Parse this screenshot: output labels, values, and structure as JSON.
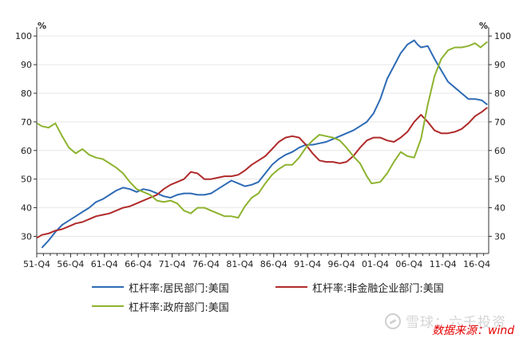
{
  "chart_data": {
    "type": "line",
    "y_unit_left": "%",
    "y_unit_right": "%",
    "ylim": [
      24,
      102
    ],
    "yticks": [
      30,
      40,
      50,
      60,
      70,
      80,
      90,
      100
    ],
    "xlim": [
      1951.75,
      2018.5
    ],
    "x_tick_labels": [
      "51-Q4",
      "56-Q4",
      "61-Q4",
      "66-Q4",
      "71-Q4",
      "76-Q4",
      "81-Q4",
      "86-Q4",
      "91-Q4",
      "96-Q4",
      "01-Q4",
      "06-Q4",
      "11-Q4",
      "16-Q4"
    ],
    "x_tick_positions": [
      1951.75,
      1956.75,
      1961.75,
      1966.75,
      1971.75,
      1976.75,
      1981.75,
      1986.75,
      1991.75,
      1996.75,
      2001.75,
      2006.75,
      2011.75,
      2016.75
    ],
    "grid": "horizontal",
    "legend_position": "bottom",
    "series": [
      {
        "name": "杠杆率:居民部门:美国",
        "color": "#2e6bb5",
        "points": [
          [
            1952.5,
            26
          ],
          [
            1953.5,
            28.5
          ],
          [
            1954.5,
            31.5
          ],
          [
            1955.5,
            34
          ],
          [
            1956.5,
            35.5
          ],
          [
            1957.5,
            37
          ],
          [
            1958.5,
            38.5
          ],
          [
            1959.5,
            40
          ],
          [
            1960.5,
            42
          ],
          [
            1961.5,
            43
          ],
          [
            1962.5,
            44.5
          ],
          [
            1963.5,
            46
          ],
          [
            1964.5,
            47
          ],
          [
            1965.5,
            46.5
          ],
          [
            1966.5,
            45.5
          ],
          [
            1967.5,
            46.5
          ],
          [
            1968.5,
            46
          ],
          [
            1969.5,
            45
          ],
          [
            1970.5,
            44
          ],
          [
            1971.5,
            43.5
          ],
          [
            1972.5,
            44.5
          ],
          [
            1973.5,
            45
          ],
          [
            1974.5,
            45
          ],
          [
            1975.5,
            44.5
          ],
          [
            1976.5,
            44.5
          ],
          [
            1977.5,
            45
          ],
          [
            1978.5,
            46.5
          ],
          [
            1979.5,
            48
          ],
          [
            1980.5,
            49.5
          ],
          [
            1981.5,
            48.5
          ],
          [
            1982.5,
            47.5
          ],
          [
            1983.5,
            48
          ],
          [
            1984.5,
            49
          ],
          [
            1985.5,
            52
          ],
          [
            1986.5,
            55
          ],
          [
            1987.5,
            57
          ],
          [
            1988.5,
            58.5
          ],
          [
            1989.5,
            59.5
          ],
          [
            1990.5,
            61
          ],
          [
            1991.5,
            62
          ],
          [
            1992.5,
            62
          ],
          [
            1993.5,
            62.5
          ],
          [
            1994.5,
            63
          ],
          [
            1995.5,
            64
          ],
          [
            1996.5,
            65
          ],
          [
            1997.5,
            66
          ],
          [
            1998.5,
            67
          ],
          [
            1999.5,
            68.5
          ],
          [
            2000.5,
            70
          ],
          [
            2001.5,
            73
          ],
          [
            2002.5,
            78
          ],
          [
            2003.5,
            85
          ],
          [
            2004.5,
            89.5
          ],
          [
            2005.5,
            94
          ],
          [
            2006.5,
            97
          ],
          [
            2007.5,
            98.5
          ],
          [
            2008,
            97
          ],
          [
            2008.5,
            96
          ],
          [
            2009.5,
            96.5
          ],
          [
            2010.5,
            92
          ],
          [
            2011.5,
            88
          ],
          [
            2012.5,
            84
          ],
          [
            2013.5,
            82
          ],
          [
            2014.5,
            80
          ],
          [
            2015.5,
            78
          ],
          [
            2016.5,
            78
          ],
          [
            2017.5,
            77.5
          ],
          [
            2018.3,
            76
          ]
        ]
      },
      {
        "name": "杠杆率:非金融企业部门:美国",
        "color": "#b02a2a",
        "points": [
          [
            1951.8,
            29.5
          ],
          [
            1952.5,
            30.5
          ],
          [
            1953.5,
            31
          ],
          [
            1954.5,
            32
          ],
          [
            1955.5,
            32.5
          ],
          [
            1956.5,
            33.5
          ],
          [
            1957.5,
            34.5
          ],
          [
            1958.5,
            35
          ],
          [
            1959.5,
            36
          ],
          [
            1960.5,
            37
          ],
          [
            1961.5,
            37.5
          ],
          [
            1962.5,
            38
          ],
          [
            1963.5,
            39
          ],
          [
            1964.5,
            40
          ],
          [
            1965.5,
            40.5
          ],
          [
            1966.5,
            41.5
          ],
          [
            1967.5,
            42.5
          ],
          [
            1968.5,
            43.5
          ],
          [
            1969.5,
            44.5
          ],
          [
            1970.5,
            46.5
          ],
          [
            1971.5,
            48
          ],
          [
            1972.5,
            49
          ],
          [
            1973.5,
            50
          ],
          [
            1974.5,
            52.5
          ],
          [
            1975.5,
            52
          ],
          [
            1976.5,
            50
          ],
          [
            1977.5,
            50
          ],
          [
            1978.5,
            50.5
          ],
          [
            1979.5,
            51
          ],
          [
            1980.5,
            51
          ],
          [
            1981.5,
            51.5
          ],
          [
            1982.5,
            53
          ],
          [
            1983.5,
            55
          ],
          [
            1984.5,
            56.5
          ],
          [
            1985.5,
            58
          ],
          [
            1986.5,
            60.5
          ],
          [
            1987.5,
            63
          ],
          [
            1988.5,
            64.5
          ],
          [
            1989.5,
            65
          ],
          [
            1990.5,
            64.5
          ],
          [
            1991.5,
            62
          ],
          [
            1992.5,
            59
          ],
          [
            1993.5,
            56.5
          ],
          [
            1994.5,
            56
          ],
          [
            1995.5,
            56
          ],
          [
            1996.5,
            55.5
          ],
          [
            1997.5,
            56
          ],
          [
            1998.5,
            58
          ],
          [
            1999.5,
            61
          ],
          [
            2000.5,
            63.5
          ],
          [
            2001.5,
            64.5
          ],
          [
            2002.5,
            64.5
          ],
          [
            2003.5,
            63.5
          ],
          [
            2004.5,
            63
          ],
          [
            2005.5,
            64.5
          ],
          [
            2006.5,
            66.5
          ],
          [
            2007.5,
            70
          ],
          [
            2008.5,
            72.5
          ],
          [
            2009.5,
            70
          ],
          [
            2010.5,
            67
          ],
          [
            2011.5,
            66
          ],
          [
            2012.5,
            66
          ],
          [
            2013.5,
            66.5
          ],
          [
            2014.5,
            67.5
          ],
          [
            2015.5,
            69.5
          ],
          [
            2016.5,
            72
          ],
          [
            2017.5,
            73.5
          ],
          [
            2018.3,
            75
          ]
        ]
      },
      {
        "name": "杠杆率:政府部门:美国",
        "color": "#8db32f",
        "points": [
          [
            1951.8,
            69.5
          ],
          [
            1952.5,
            68.5
          ],
          [
            1953.5,
            68
          ],
          [
            1954.5,
            69.5
          ],
          [
            1955.5,
            65
          ],
          [
            1956.5,
            61
          ],
          [
            1957.5,
            59
          ],
          [
            1958.5,
            60.5
          ],
          [
            1959.5,
            58.5
          ],
          [
            1960.5,
            57.5
          ],
          [
            1961.5,
            57
          ],
          [
            1962.5,
            55.5
          ],
          [
            1963.5,
            54
          ],
          [
            1964.5,
            52
          ],
          [
            1965.5,
            49
          ],
          [
            1966.5,
            46.5
          ],
          [
            1967.5,
            45.5
          ],
          [
            1968.5,
            44.5
          ],
          [
            1969.5,
            42.5
          ],
          [
            1970.5,
            42
          ],
          [
            1971.5,
            42.5
          ],
          [
            1972.5,
            41.5
          ],
          [
            1973.5,
            39
          ],
          [
            1974.5,
            38
          ],
          [
            1975.5,
            40
          ],
          [
            1976.5,
            40
          ],
          [
            1977.5,
            39
          ],
          [
            1978.5,
            38
          ],
          [
            1979.5,
            37
          ],
          [
            1980.5,
            37
          ],
          [
            1981.5,
            36.5
          ],
          [
            1982.5,
            40.5
          ],
          [
            1983.5,
            43.5
          ],
          [
            1984.5,
            45
          ],
          [
            1985.5,
            48.5
          ],
          [
            1986.5,
            51.5
          ],
          [
            1987.5,
            53.5
          ],
          [
            1988.5,
            55
          ],
          [
            1989.5,
            55
          ],
          [
            1990.5,
            57.5
          ],
          [
            1991.5,
            61
          ],
          [
            1992.5,
            63.5
          ],
          [
            1993.5,
            65.5
          ],
          [
            1994.5,
            65
          ],
          [
            1995.5,
            64.5
          ],
          [
            1996.5,
            63.5
          ],
          [
            1997.5,
            61
          ],
          [
            1998.5,
            58
          ],
          [
            1999.5,
            55.5
          ],
          [
            2000.5,
            51
          ],
          [
            2001.2,
            48.5
          ],
          [
            2002.5,
            49
          ],
          [
            2003.5,
            52
          ],
          [
            2004.5,
            56
          ],
          [
            2005.5,
            59.5
          ],
          [
            2006.5,
            58
          ],
          [
            2007.5,
            57.5
          ],
          [
            2008.5,
            64
          ],
          [
            2009.5,
            76
          ],
          [
            2010.5,
            86
          ],
          [
            2011.5,
            92
          ],
          [
            2012.5,
            95
          ],
          [
            2013.5,
            96
          ],
          [
            2014.5,
            96
          ],
          [
            2015.5,
            96.5
          ],
          [
            2016.5,
            97.5
          ],
          [
            2017.3,
            96
          ],
          [
            2018.3,
            98
          ]
        ]
      }
    ]
  },
  "legend": [
    {
      "label": "杠杆率:居民部门:美国",
      "color": "#2e6bb5"
    },
    {
      "label": "杠杆率:非金融企业部门:美国",
      "color": "#b02a2a"
    },
    {
      "label": "杠杆率:政府部门:美国",
      "color": "#8db32f"
    }
  ],
  "watermark": "雪球：六千投资",
  "source": "数据来源：wind"
}
